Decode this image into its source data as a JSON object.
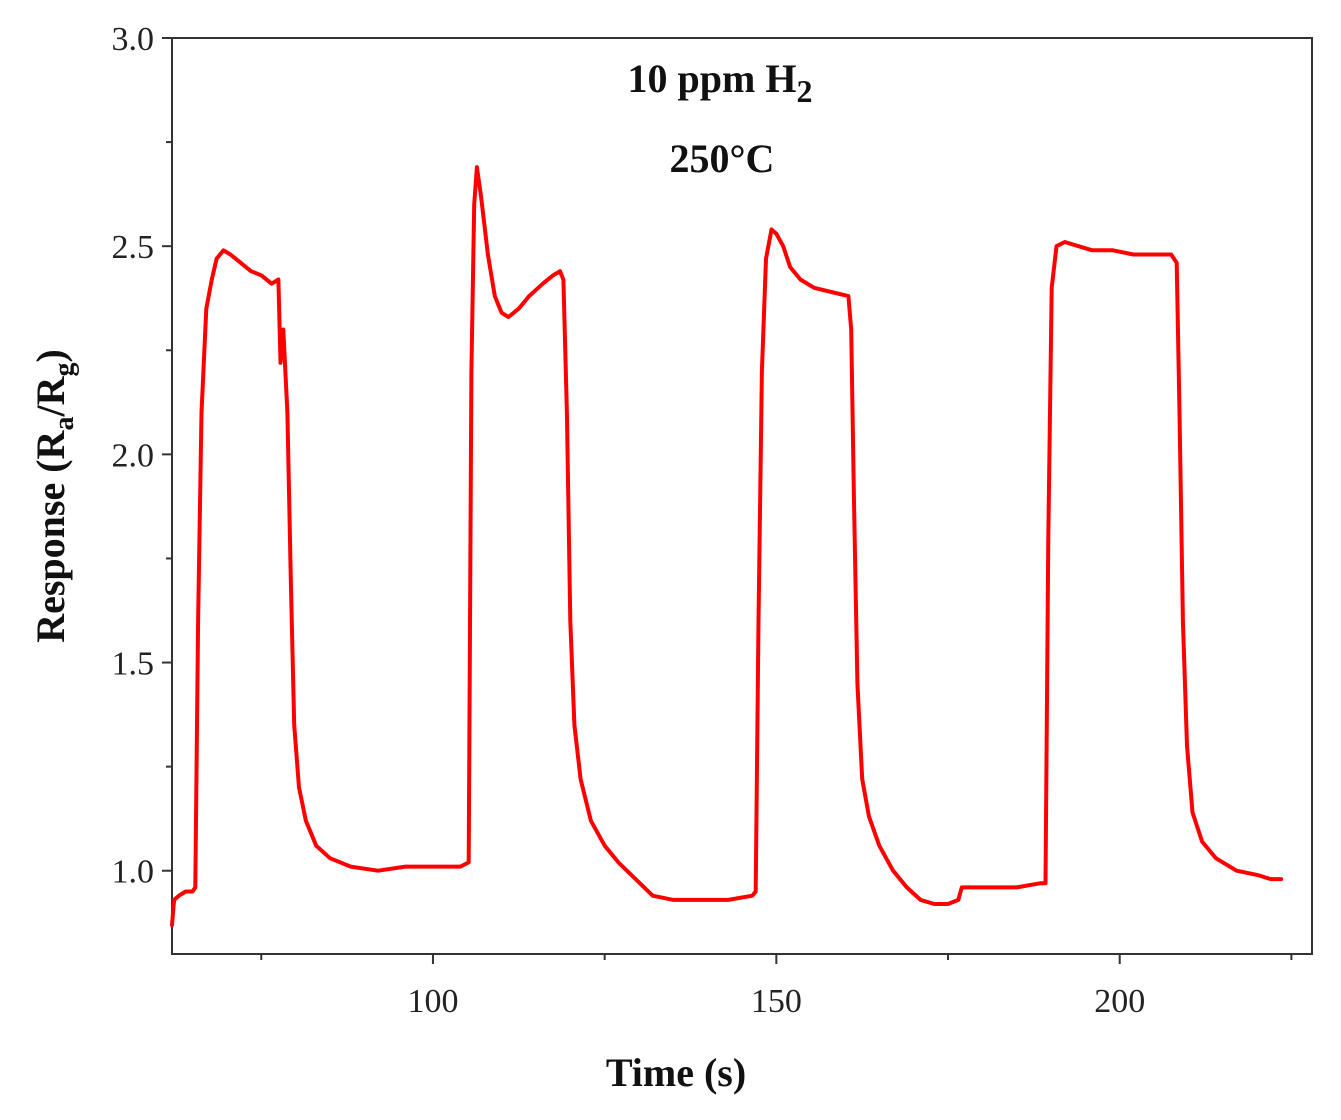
{
  "chart_data": {
    "type": "line",
    "title": "",
    "annotations": {
      "line1_main": "10 ppm H",
      "line1_sub": "2",
      "line2": "250°C"
    },
    "xlabel": "Time (s)",
    "ylabel": {
      "prefix": "Response (R",
      "sub_a": "a",
      "mid": "/R",
      "sub_g": "g",
      "suffix": ")"
    },
    "xlim": [
      62,
      228
    ],
    "ylim": [
      0.8,
      3.0
    ],
    "xticks_major": [
      100,
      150,
      200
    ],
    "xtick_labels": [
      "100",
      "150",
      "200"
    ],
    "xticks_minor": [
      75,
      125,
      175,
      225
    ],
    "yticks_major": [
      1.0,
      1.5,
      2.0,
      2.5,
      3.0
    ],
    "ytick_labels": [
      "1.0",
      "1.5",
      "2.0",
      "2.5",
      "3.0"
    ],
    "yticks_minor": [
      1.25,
      1.75,
      2.25,
      2.75
    ],
    "series": [
      {
        "name": "Response",
        "color": "#ff0000",
        "points": [
          [
            62.0,
            0.87
          ],
          [
            62.3,
            0.93
          ],
          [
            63.0,
            0.94
          ],
          [
            64.0,
            0.95
          ],
          [
            65.0,
            0.95
          ],
          [
            65.4,
            0.96
          ],
          [
            65.8,
            1.6
          ],
          [
            66.3,
            2.1
          ],
          [
            67.0,
            2.35
          ],
          [
            67.8,
            2.42
          ],
          [
            68.5,
            2.47
          ],
          [
            69.5,
            2.49
          ],
          [
            70.5,
            2.48
          ],
          [
            72.0,
            2.46
          ],
          [
            73.5,
            2.44
          ],
          [
            75.0,
            2.43
          ],
          [
            76.5,
            2.41
          ],
          [
            77.5,
            2.42
          ],
          [
            77.8,
            2.22
          ],
          [
            78.2,
            2.3
          ],
          [
            78.8,
            2.1
          ],
          [
            79.3,
            1.7
          ],
          [
            79.8,
            1.35
          ],
          [
            80.5,
            1.2
          ],
          [
            81.5,
            1.12
          ],
          [
            83.0,
            1.06
          ],
          [
            85.0,
            1.03
          ],
          [
            88.0,
            1.01
          ],
          [
            92.0,
            1.0
          ],
          [
            96.0,
            1.01
          ],
          [
            100.0,
            1.01
          ],
          [
            104.0,
            1.01
          ],
          [
            105.2,
            1.02
          ],
          [
            105.6,
            2.2
          ],
          [
            106.0,
            2.6
          ],
          [
            106.4,
            2.69
          ],
          [
            107.0,
            2.62
          ],
          [
            108.0,
            2.48
          ],
          [
            109.0,
            2.38
          ],
          [
            110.0,
            2.34
          ],
          [
            111.0,
            2.33
          ],
          [
            112.5,
            2.35
          ],
          [
            114.0,
            2.38
          ],
          [
            116.0,
            2.41
          ],
          [
            117.5,
            2.43
          ],
          [
            118.5,
            2.44
          ],
          [
            119.0,
            2.42
          ],
          [
            119.5,
            2.1
          ],
          [
            120.0,
            1.6
          ],
          [
            120.6,
            1.35
          ],
          [
            121.5,
            1.22
          ],
          [
            123.0,
            1.12
          ],
          [
            125.0,
            1.06
          ],
          [
            127.0,
            1.02
          ],
          [
            129.5,
            0.98
          ],
          [
            132.0,
            0.94
          ],
          [
            135.0,
            0.93
          ],
          [
            139.0,
            0.93
          ],
          [
            143.0,
            0.93
          ],
          [
            146.5,
            0.94
          ],
          [
            147.0,
            0.95
          ],
          [
            147.4,
            1.6
          ],
          [
            147.9,
            2.2
          ],
          [
            148.5,
            2.47
          ],
          [
            149.3,
            2.54
          ],
          [
            150.0,
            2.53
          ],
          [
            151.0,
            2.5
          ],
          [
            152.0,
            2.45
          ],
          [
            153.5,
            2.42
          ],
          [
            155.5,
            2.4
          ],
          [
            158.0,
            2.39
          ],
          [
            160.5,
            2.38
          ],
          [
            160.9,
            2.3
          ],
          [
            161.3,
            1.9
          ],
          [
            161.8,
            1.45
          ],
          [
            162.5,
            1.22
          ],
          [
            163.5,
            1.13
          ],
          [
            165.0,
            1.06
          ],
          [
            167.0,
            1.0
          ],
          [
            169.0,
            0.96
          ],
          [
            171.0,
            0.93
          ],
          [
            173.0,
            0.92
          ],
          [
            175.0,
            0.92
          ],
          [
            176.5,
            0.93
          ],
          [
            177.0,
            0.96
          ],
          [
            179.0,
            0.96
          ],
          [
            182.0,
            0.96
          ],
          [
            185.0,
            0.96
          ],
          [
            188.5,
            0.97
          ],
          [
            189.2,
            0.97
          ],
          [
            189.6,
            1.8
          ],
          [
            190.1,
            2.4
          ],
          [
            190.8,
            2.5
          ],
          [
            192.0,
            2.51
          ],
          [
            194.0,
            2.5
          ],
          [
            196.0,
            2.49
          ],
          [
            199.0,
            2.49
          ],
          [
            202.0,
            2.48
          ],
          [
            205.0,
            2.48
          ],
          [
            207.5,
            2.48
          ],
          [
            208.3,
            2.46
          ],
          [
            208.7,
            2.1
          ],
          [
            209.2,
            1.6
          ],
          [
            209.8,
            1.3
          ],
          [
            210.6,
            1.14
          ],
          [
            212.0,
            1.07
          ],
          [
            214.0,
            1.03
          ],
          [
            217.0,
            1.0
          ],
          [
            220.0,
            0.99
          ],
          [
            222.0,
            0.98
          ],
          [
            223.5,
            0.98
          ]
        ]
      }
    ]
  }
}
